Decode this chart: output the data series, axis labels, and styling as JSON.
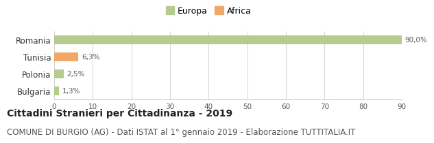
{
  "categories": [
    "Romania",
    "Tunisia",
    "Polonia",
    "Bulgaria"
  ],
  "values": [
    90.0,
    6.3,
    2.5,
    1.3
  ],
  "colors": [
    "#b5cc8e",
    "#f0a868",
    "#b5cc8e",
    "#b5cc8e"
  ],
  "labels": [
    "90,0%",
    "6,3%",
    "2,5%",
    "1,3%"
  ],
  "legend_labels": [
    "Europa",
    "Africa"
  ],
  "legend_colors": [
    "#b5cc8e",
    "#f0a868"
  ],
  "xlim": [
    0,
    90
  ],
  "xticks": [
    0,
    10,
    20,
    30,
    40,
    50,
    60,
    70,
    80,
    90
  ],
  "title": "Cittadini Stranieri per Cittadinanza - 2019",
  "subtitle": "COMUNE DI BURGIO (AG) - Dati ISTAT al 1° gennaio 2019 - Elaborazione TUTTITALIA.IT",
  "title_fontsize": 10,
  "subtitle_fontsize": 8.5,
  "bar_height": 0.55,
  "background_color": "#ffffff",
  "grid_color": "#cccccc",
  "text_color": "#555555",
  "title_color": "#222222"
}
